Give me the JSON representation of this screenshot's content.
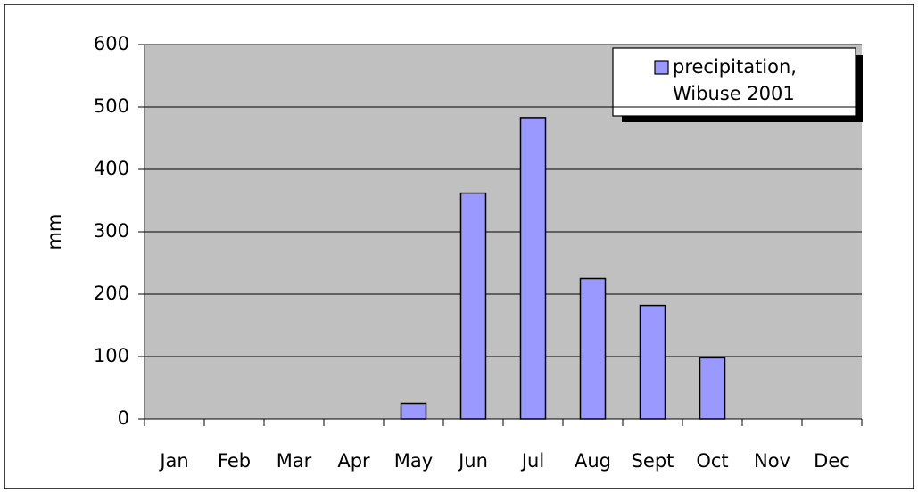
{
  "chart_data": {
    "type": "bar",
    "y_label": "mm",
    "categories": [
      "Jan",
      "Feb",
      "Mar",
      "Apr",
      "May",
      "Jun",
      "Jul",
      "Aug",
      "Sept",
      "Oct",
      "Nov",
      "Dec"
    ],
    "series": [
      {
        "name": "precipitation, Wibuse 2001",
        "color": "#9999ff",
        "values": [
          0,
          0,
          0,
          0,
          25,
          362,
          483,
          225,
          182,
          98,
          0,
          0
        ]
      }
    ],
    "ylim": [
      0,
      600
    ],
    "yticks": [
      0,
      100,
      200,
      300,
      400,
      500,
      600
    ],
    "grid": true,
    "legend": "top-right"
  }
}
